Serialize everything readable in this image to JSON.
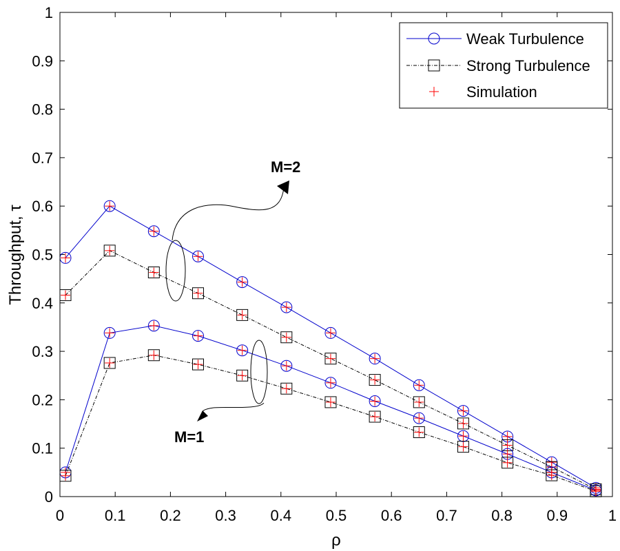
{
  "chart_data": {
    "type": "line",
    "title": "",
    "xlabel": "ρ",
    "ylabel": "Throughput, τ",
    "xlim": [
      0,
      1
    ],
    "ylim": [
      0,
      1
    ],
    "grid": false,
    "legend_position": "top-right",
    "xticks": [
      "0",
      "0.1",
      "0.2",
      "0.3",
      "0.4",
      "0.5",
      "0.6",
      "0.7",
      "0.8",
      "0.9",
      "1"
    ],
    "yticks": [
      "0",
      "0.1",
      "0.2",
      "0.3",
      "0.4",
      "0.5",
      "0.6",
      "0.7",
      "0.8",
      "0.9",
      "1"
    ],
    "x": [
      0.01,
      0.09,
      0.17,
      0.25,
      0.33,
      0.41,
      0.49,
      0.57,
      0.65,
      0.73,
      0.81,
      0.89,
      0.97
    ],
    "series": [
      {
        "name": "Weak Turbulence",
        "group": "M=2",
        "color": "#0000cc",
        "marker": "circle",
        "values": [
          0.493,
          0.6,
          0.548,
          0.496,
          0.443,
          0.391,
          0.338,
          0.285,
          0.23,
          0.177,
          0.124,
          0.071,
          0.018
        ]
      },
      {
        "name": "Strong Turbulence",
        "group": "M=2",
        "color": "#000000",
        "marker": "square",
        "values": [
          0.416,
          0.508,
          0.463,
          0.42,
          0.375,
          0.329,
          0.285,
          0.241,
          0.195,
          0.151,
          0.106,
          0.061,
          0.015
        ]
      },
      {
        "name": "Weak Turbulence",
        "group": "M=1",
        "color": "#0000cc",
        "marker": "circle",
        "values": [
          0.05,
          0.338,
          0.353,
          0.332,
          0.302,
          0.27,
          0.235,
          0.197,
          0.162,
          0.125,
          0.088,
          0.05,
          0.013
        ]
      },
      {
        "name": "Strong Turbulence",
        "group": "M=1",
        "color": "#000000",
        "marker": "square",
        "values": [
          0.043,
          0.276,
          0.292,
          0.273,
          0.25,
          0.223,
          0.195,
          0.165,
          0.133,
          0.103,
          0.07,
          0.044,
          0.011
        ]
      }
    ],
    "legend": [
      {
        "label": "Weak Turbulence",
        "marker": "circle",
        "color": "#0000cc"
      },
      {
        "label": "Strong Turbulence",
        "marker": "square",
        "color": "#000000"
      },
      {
        "label": "Simulation",
        "marker": "plus",
        "color": "#ff0000"
      }
    ],
    "annotations": [
      {
        "text": "M=2"
      },
      {
        "text": "M=1"
      }
    ]
  }
}
